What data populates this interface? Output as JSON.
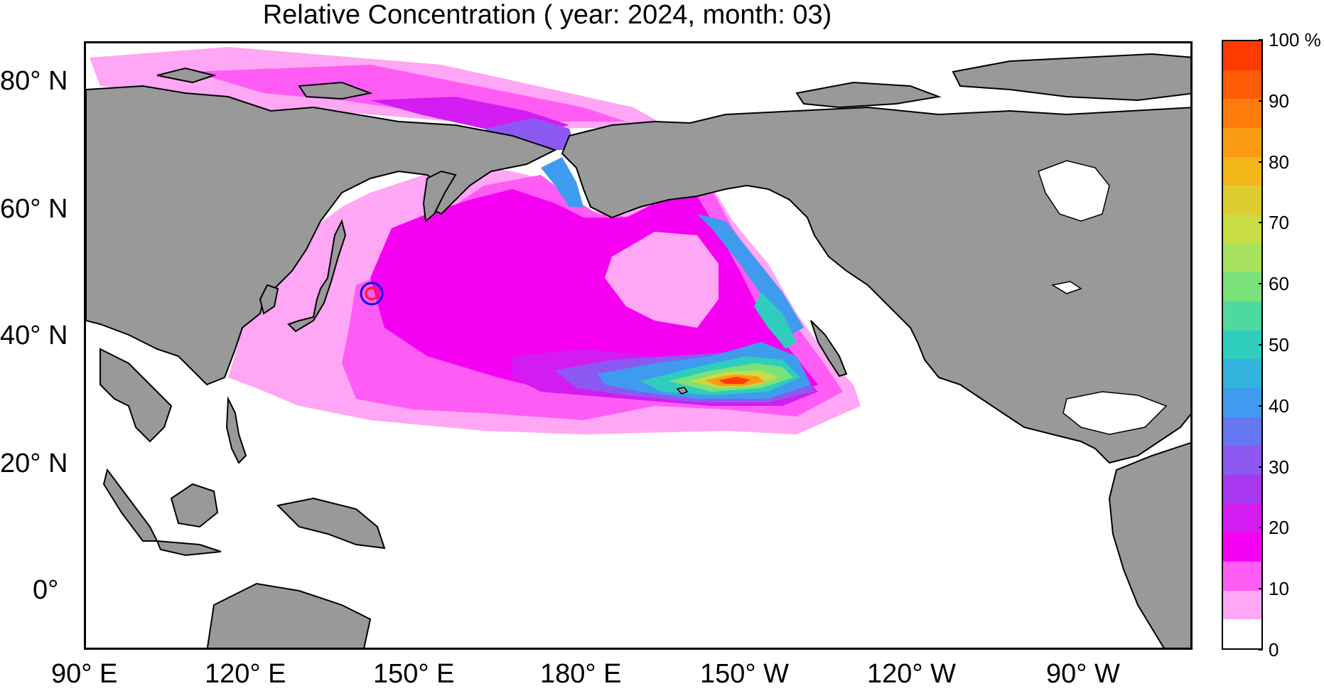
{
  "title": "Relative Concentration ( year: 2024, month: 03)",
  "lat_labels": [
    "80° N",
    "60° N",
    "40° N",
    "20° N",
    "0°"
  ],
  "lon_labels": [
    "90° E",
    "120° E",
    "150° E",
    "180° E",
    "150° W",
    "120° W",
    "90° W"
  ],
  "colorbar": {
    "unit": "%",
    "tick_labels": [
      "0",
      "10",
      "20",
      "30",
      "40",
      "50",
      "60",
      "70",
      "80",
      "90",
      "100 %"
    ],
    "tick_values": [
      0,
      10,
      20,
      30,
      40,
      50,
      60,
      70,
      80,
      90,
      100
    ],
    "colors": [
      "#ffffff",
      "#ffa6f4",
      "#ff5cf6",
      "#f500f2",
      "#d21cf2",
      "#a837f0",
      "#8d58f2",
      "#6677f4",
      "#3e9bee",
      "#32b3de",
      "#2fcdbd",
      "#4ed99f",
      "#7ae27a",
      "#a7e25e",
      "#c8dc44",
      "#ddcb2f",
      "#f2b61a",
      "#fb9b14",
      "#ff7c0a",
      "#ff5a04",
      "#ff3a00"
    ]
  },
  "map": {
    "land_color": "#999999",
    "marker": {
      "outer_color": "#1010e0",
      "inner_color": "#ff2020"
    }
  }
}
